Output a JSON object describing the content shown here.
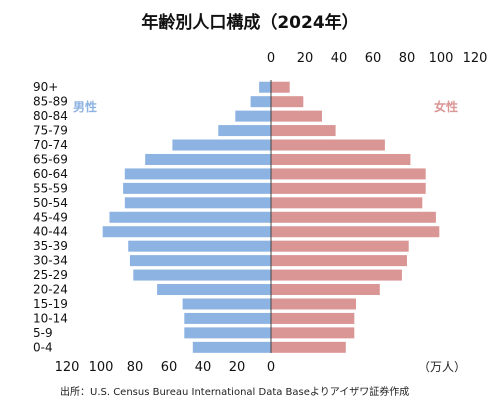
{
  "chart_data": {
    "type": "bar",
    "title": "年齢別人口構成（2024年）",
    "categories": [
      "0-4",
      "5-9",
      "10-14",
      "15-19",
      "20-24",
      "25-29",
      "30-34",
      "35-39",
      "40-44",
      "45-49",
      "50-54",
      "55-59",
      "60-64",
      "65-69",
      "70-74",
      "75-79",
      "80-84",
      "85-89",
      "90+"
    ],
    "series": [
      {
        "name": "男性",
        "color": "#8db3e2",
        "values": [
          46,
          51,
          51,
          52,
          67,
          81,
          83,
          84,
          99,
          95,
          86,
          87,
          86,
          74,
          58,
          31,
          21,
          12,
          7
        ]
      },
      {
        "name": "女性",
        "color": "#da9694",
        "values": [
          44,
          49,
          49,
          50,
          64,
          77,
          80,
          81,
          99,
          97,
          89,
          91,
          91,
          82,
          67,
          38,
          30,
          19,
          11
        ]
      }
    ],
    "xlim": [
      0,
      120
    ],
    "top_ticks": [
      "0",
      "20",
      "40",
      "60",
      "80",
      "100",
      "120"
    ],
    "bottom_ticks": [
      "120",
      "100",
      "80",
      "60",
      "40",
      "20",
      "0"
    ],
    "unit_label": "（万人）",
    "grid": false,
    "source": "出所：U.S. Census Bureau International Data Baseよりアイザワ証券作成"
  }
}
